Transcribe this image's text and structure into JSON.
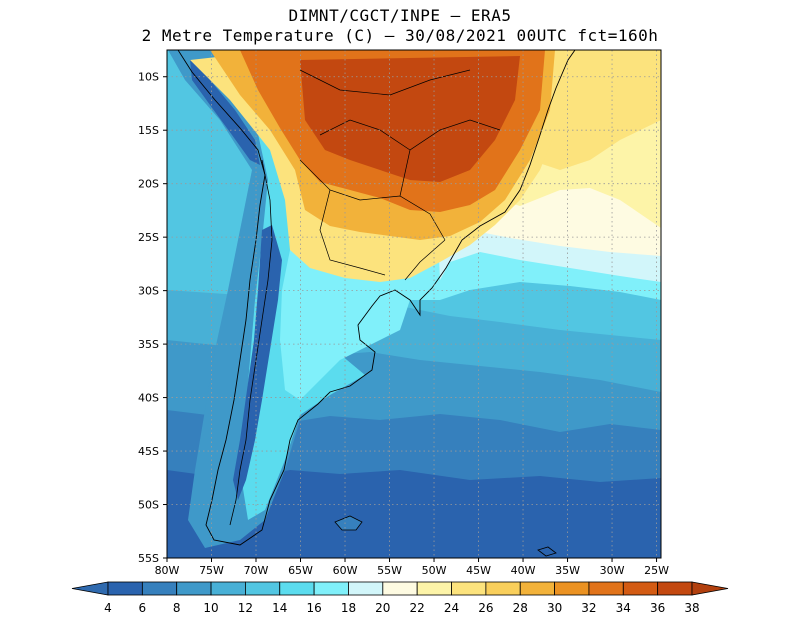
{
  "title": {
    "line1": "DIMNT/CGCT/INPE –  ERA5",
    "line2": "2 Metre Temperature (C) –  30/08/2021 00UTC fct=160h"
  },
  "map": {
    "lat_labels": [
      "10S",
      "15S",
      "20S",
      "25S",
      "30S",
      "35S",
      "40S",
      "45S",
      "50S",
      "55S"
    ],
    "lon_labels": [
      "80W",
      "75W",
      "70W",
      "65W",
      "60W",
      "55W",
      "50W",
      "45W",
      "40W",
      "35W",
      "30W",
      "25W"
    ],
    "gridlines": "dotted"
  },
  "colorbar": {
    "labels": [
      "4",
      "6",
      "8",
      "10",
      "12",
      "14",
      "16",
      "18",
      "20",
      "22",
      "24",
      "26",
      "28",
      "30",
      "32",
      "34",
      "36",
      "38"
    ],
    "colors": [
      "#2a63ae",
      "#3680bd",
      "#3f99c9",
      "#48b0d6",
      "#52c6e2",
      "#5bdcee",
      "#80f0fa",
      "#d2f6fa",
      "#fefbe2",
      "#fdf4a8",
      "#fce37d",
      "#f9cf5b",
      "#f2b23a",
      "#eb9222",
      "#e1731a",
      "#d35b13",
      "#c34810"
    ]
  },
  "regions": [
    {
      "name": "south-ocean",
      "color": "#2a63ae"
    },
    {
      "name": "ocean-band-6",
      "color": "#3680bd"
    },
    {
      "name": "ocean-band-8",
      "color": "#3f99c9"
    },
    {
      "name": "ocean-band-10",
      "color": "#48b0d6"
    },
    {
      "name": "ocean-band-12",
      "color": "#52c6e2"
    },
    {
      "name": "ocean-band-16",
      "color": "#80f0fa"
    },
    {
      "name": "ocean-band-18",
      "color": "#d2f6fa"
    },
    {
      "name": "ocean-band-20",
      "color": "#fefbe2"
    },
    {
      "name": "ocean-band-22",
      "color": "#fdf4a8"
    },
    {
      "name": "land-south",
      "color": "#3f99c9"
    },
    {
      "name": "land-patagonia",
      "color": "#5bdcee"
    },
    {
      "name": "land-pampa",
      "color": "#80f0fa"
    },
    {
      "name": "land-warm-1",
      "color": "#fce37d"
    },
    {
      "name": "land-warm-2",
      "color": "#f2b23a"
    },
    {
      "name": "land-hot-1",
      "color": "#e1731a"
    },
    {
      "name": "land-hot-2",
      "color": "#c34810"
    },
    {
      "name": "andes-cold",
      "color": "#2a63ae"
    }
  ]
}
